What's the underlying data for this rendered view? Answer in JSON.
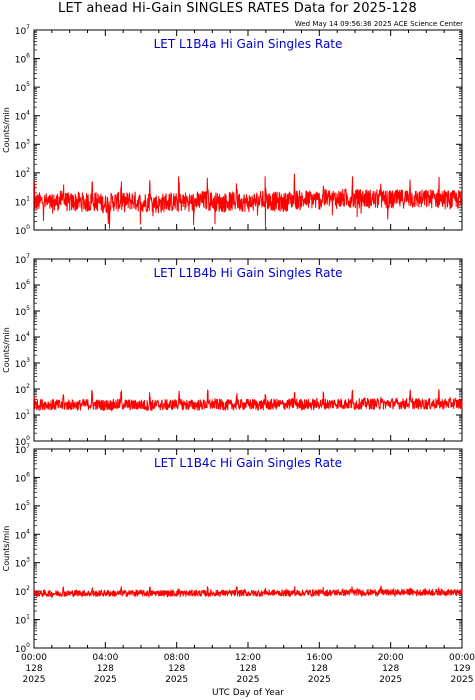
{
  "page": {
    "title": "LET ahead Hi-Gain SINGLES RATES Data for 2025-128",
    "timestamp": "Wed May 14 09:56:36 2025 ACE Science Center"
  },
  "colors": {
    "trace": "#ff0000",
    "panel_title": "#0000cc",
    "axes": "#000000"
  },
  "chart_data": [
    {
      "type": "line",
      "title": "LET L1B4a Hi Gain Singles Rate",
      "ylabel": "Counts/min",
      "xlabel": "",
      "yscale": "log",
      "ylim": [
        1,
        10000000
      ],
      "xlim": [
        0,
        24
      ],
      "series": [
        {
          "x": [
            0,
            0.5,
            1,
            1.5,
            2,
            2.5,
            3,
            3.5,
            4,
            4.5,
            5,
            5.5,
            6,
            6.5,
            7,
            7.5,
            8,
            8.5,
            9,
            9.5,
            10,
            10.5,
            11,
            11.5,
            12,
            12.5,
            13,
            13.5,
            14,
            14.5,
            15,
            15.5,
            16,
            16.5,
            17,
            17.5,
            18,
            18.5,
            19,
            19.5,
            20,
            20.5,
            21,
            21.5,
            22,
            22.5,
            23,
            23.5,
            24
          ],
          "y": [
            9,
            10,
            8,
            11,
            9,
            10,
            9,
            10,
            8,
            10,
            9,
            11,
            9,
            10,
            8,
            10,
            9,
            10,
            9,
            11,
            10,
            9,
            10,
            10,
            9,
            10,
            11,
            10,
            9,
            12,
            11,
            12,
            11,
            13,
            12,
            13,
            12,
            13,
            12,
            12,
            11,
            12,
            13,
            12,
            12,
            13,
            12,
            11,
            12
          ]
        }
      ]
    },
    {
      "type": "line",
      "title": "LET L1B4b Hi Gain Singles Rate",
      "ylabel": "Counts/min",
      "xlabel": "",
      "yscale": "log",
      "ylim": [
        1,
        10000000
      ],
      "xlim": [
        0,
        24
      ],
      "series": [
        {
          "x": [
            0,
            0.5,
            1,
            1.5,
            2,
            2.5,
            3,
            3.5,
            4,
            4.5,
            5,
            5.5,
            6,
            6.5,
            7,
            7.5,
            8,
            8.5,
            9,
            9.5,
            10,
            10.5,
            11,
            11.5,
            12,
            12.5,
            13,
            13.5,
            14,
            14.5,
            15,
            15.5,
            16,
            16.5,
            17,
            17.5,
            18,
            18.5,
            19,
            19.5,
            20,
            20.5,
            21,
            21.5,
            22,
            22.5,
            23,
            23.5,
            24
          ],
          "y": [
            24,
            26,
            25,
            23,
            25,
            24,
            26,
            25,
            24,
            25,
            26,
            24,
            25,
            23,
            25,
            24,
            26,
            25,
            24,
            25,
            26,
            25,
            24,
            25,
            26,
            25,
            24,
            26,
            25,
            27,
            26,
            25,
            27,
            26,
            28,
            27,
            26,
            28,
            27,
            26,
            28,
            27,
            28,
            27,
            26,
            28,
            27,
            28,
            27
          ]
        }
      ]
    },
    {
      "type": "line",
      "title": "LET L1B4c Hi Gain Singles Rate",
      "ylabel": "Counts/min",
      "xlabel": "UTC Day of Year",
      "yscale": "log",
      "ylim": [
        1,
        10000000
      ],
      "xlim": [
        0,
        24
      ],
      "series": [
        {
          "x": [
            0,
            0.5,
            1,
            1.5,
            2,
            2.5,
            3,
            3.5,
            4,
            4.5,
            5,
            5.5,
            6,
            6.5,
            7,
            7.5,
            8,
            8.5,
            9,
            9.5,
            10,
            10.5,
            11,
            11.5,
            12,
            12.5,
            13,
            13.5,
            14,
            14.5,
            15,
            15.5,
            16,
            16.5,
            17,
            17.5,
            18,
            18.5,
            19,
            19.5,
            20,
            20.5,
            21,
            21.5,
            22,
            22.5,
            23,
            23.5,
            24
          ],
          "y": [
            80,
            84,
            82,
            85,
            83,
            86,
            84,
            82,
            85,
            83,
            84,
            86,
            85,
            83,
            87,
            84,
            85,
            83,
            86,
            84,
            85,
            87,
            84,
            86,
            85,
            84,
            86,
            88,
            85,
            87,
            86,
            89,
            87,
            88,
            90,
            88,
            91,
            89,
            90,
            92,
            89,
            91,
            93,
            90,
            92,
            91,
            93,
            90,
            88
          ]
        }
      ]
    }
  ],
  "y_ticks": {
    "values": [
      1,
      10,
      100,
      1000,
      10000,
      100000,
      1000000,
      10000000
    ],
    "base": "10",
    "exponents": [
      "0",
      "1",
      "2",
      "3",
      "4",
      "5",
      "6",
      "7"
    ]
  },
  "x_axis": {
    "ticks": [
      {
        "value": 0,
        "time": "00:00",
        "doy": "128",
        "year": "2025"
      },
      {
        "value": 4,
        "time": "04:00",
        "doy": "128",
        "year": "2025"
      },
      {
        "value": 8,
        "time": "08:00",
        "doy": "128",
        "year": "2025"
      },
      {
        "value": 12,
        "time": "12:00",
        "doy": "128",
        "year": "2025"
      },
      {
        "value": 16,
        "time": "16:00",
        "doy": "128",
        "year": "2025"
      },
      {
        "value": 20,
        "time": "20:00",
        "doy": "128",
        "year": "2025"
      },
      {
        "value": 24,
        "time": "00:00",
        "doy": "129",
        "year": "2025"
      }
    ]
  }
}
